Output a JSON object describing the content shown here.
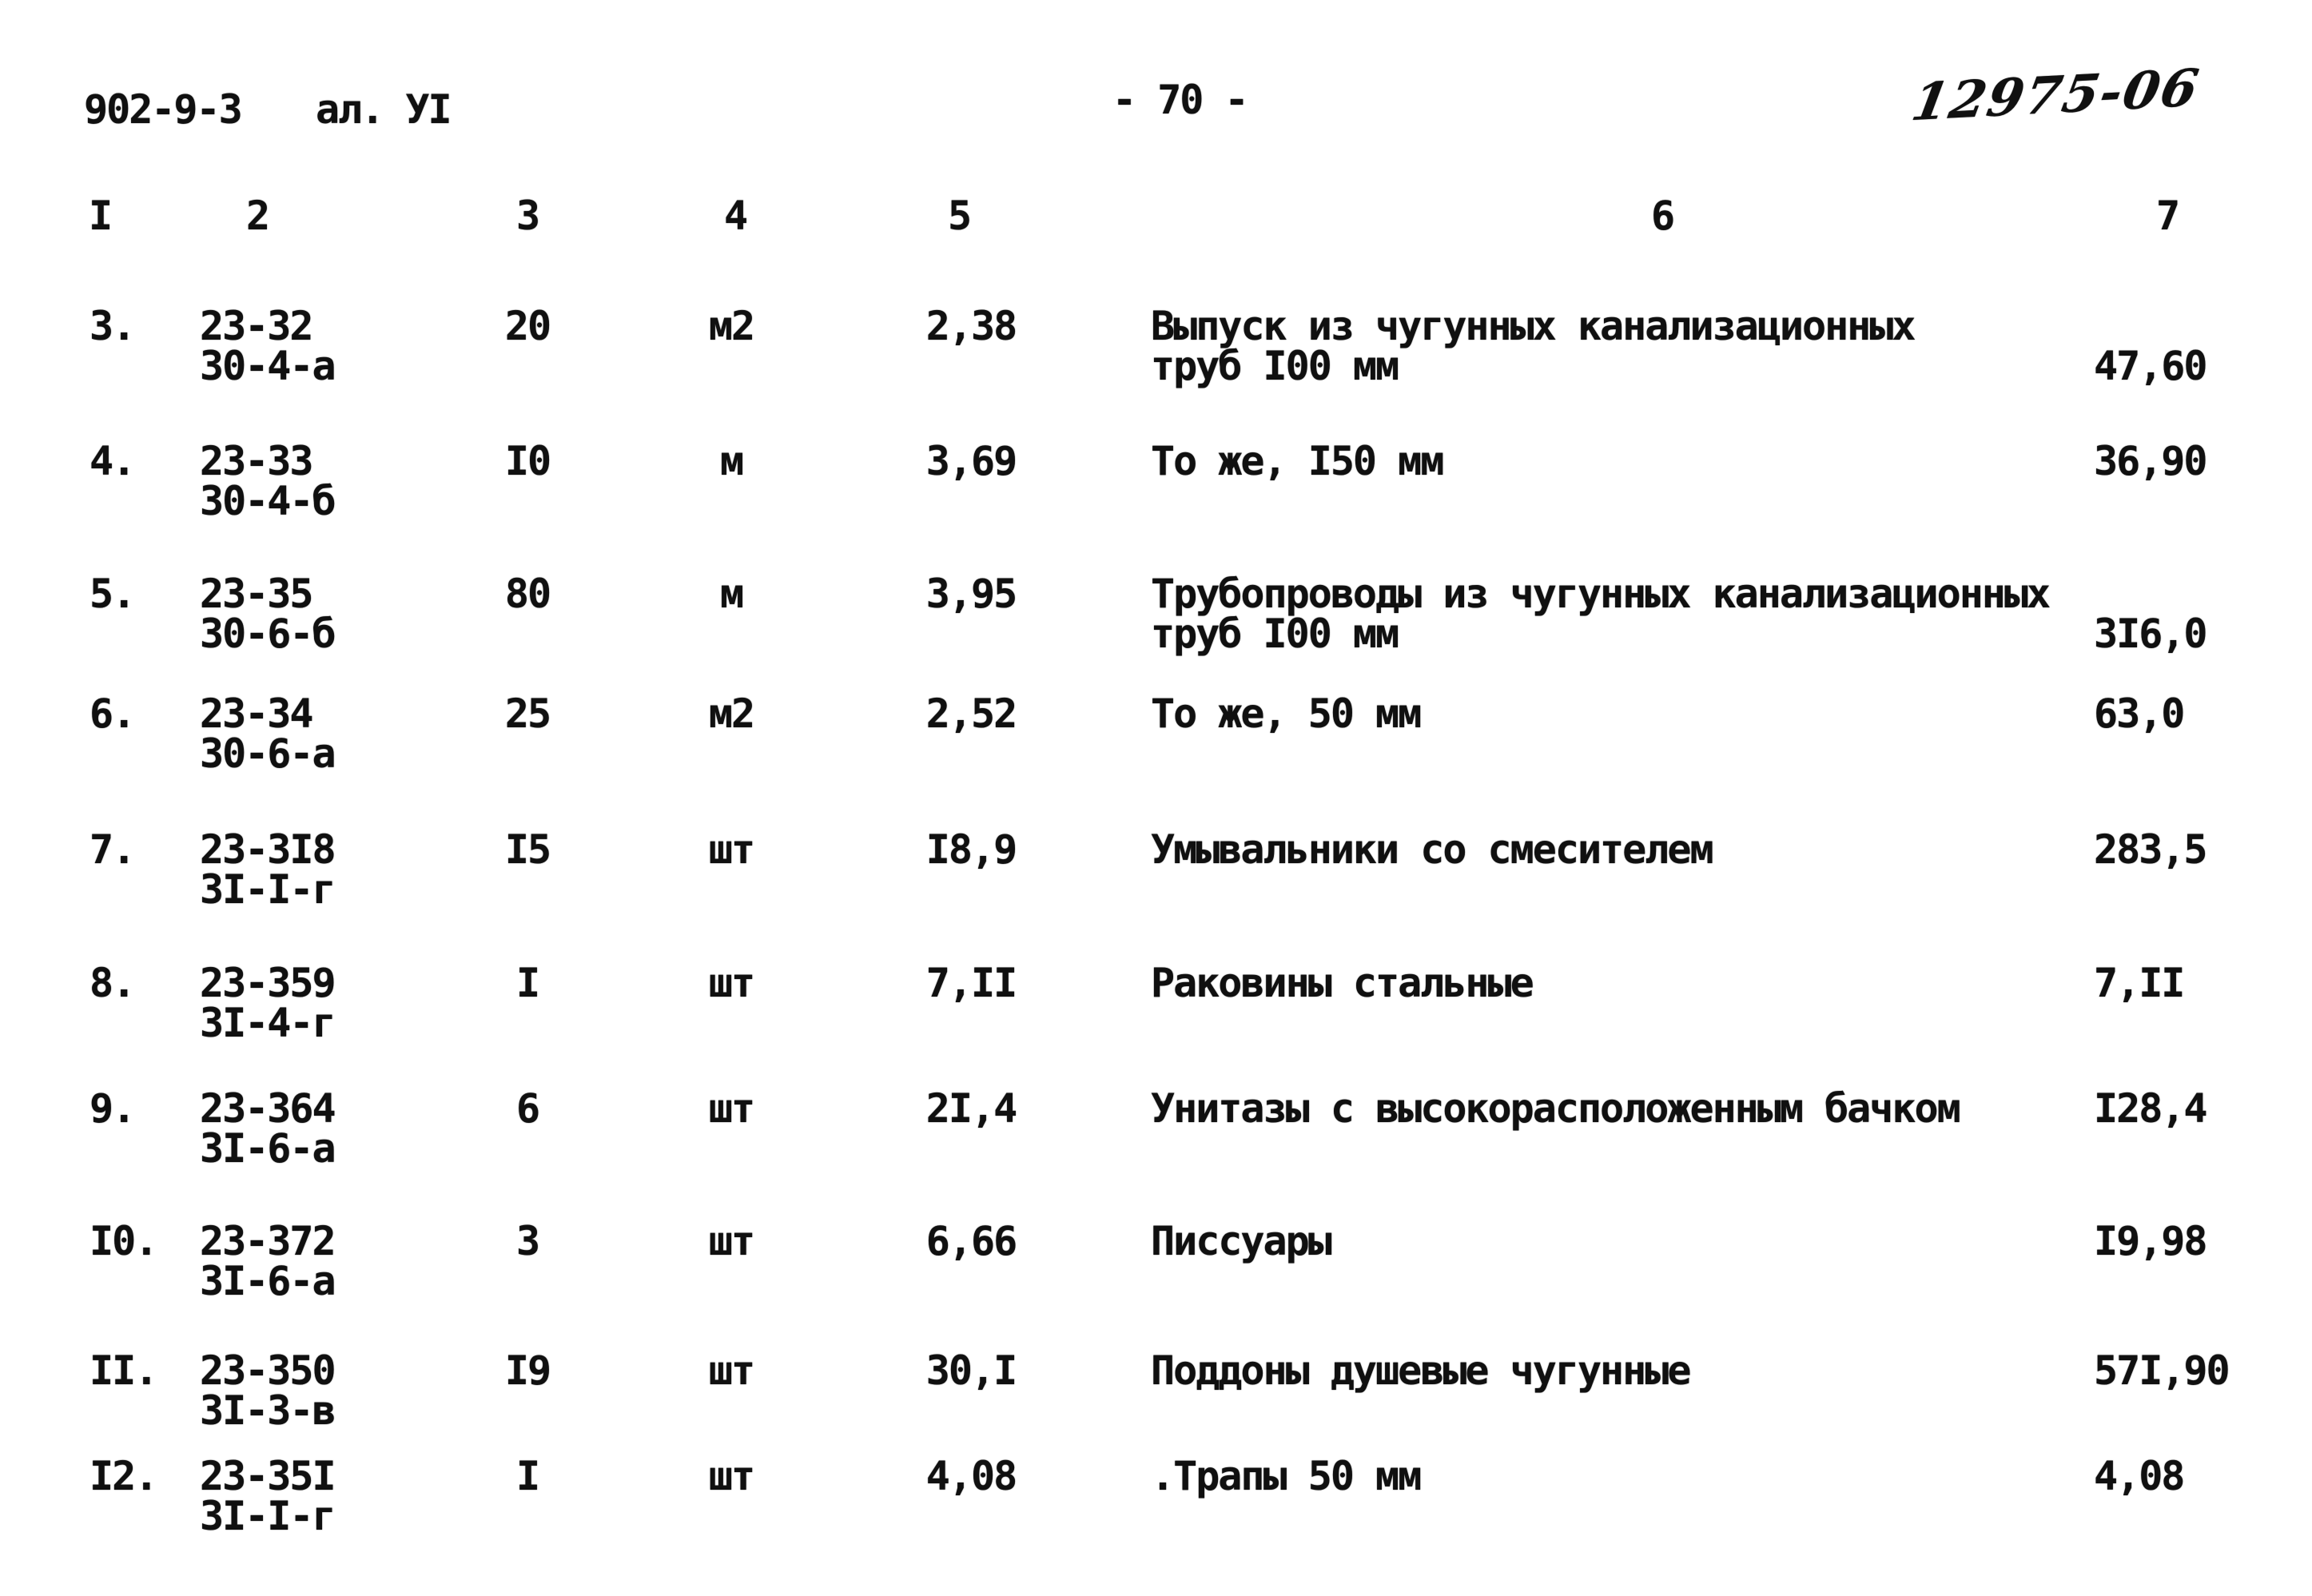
{
  "header": {
    "doc_code": "902-9-3",
    "album": "ал. УІ",
    "page_number": "- 70 -",
    "handwritten_number": "12975-06"
  },
  "table": {
    "column_headers": [
      "I",
      "2",
      "3",
      "4",
      "5",
      "6",
      "7"
    ],
    "rows": [
      {
        "num": "3.",
        "code": [
          "23-32",
          "30-4-а"
        ],
        "qty": "20",
        "unit": "м2",
        "unit_cost": "2,38",
        "description": [
          "Выпуск из чугунных канализационных",
          "труб I00 мм"
        ],
        "total": "47,60"
      },
      {
        "num": "4.",
        "code": [
          "23-33",
          "30-4-б"
        ],
        "qty": "I0",
        "unit": "м",
        "unit_cost": "3,69",
        "description": [
          "То же, I50 мм"
        ],
        "total": "36,90"
      },
      {
        "num": "5.",
        "code": [
          "23-35",
          "30-6-б"
        ],
        "qty": "80",
        "unit": "м",
        "unit_cost": "3,95",
        "description": [
          "Трубопроводы из чугунных канализационных",
          "труб I00 мм"
        ],
        "total": "3I6,0"
      },
      {
        "num": "6.",
        "code": [
          "23-34",
          "30-6-а"
        ],
        "qty": "25",
        "unit": "м2",
        "unit_cost": "2,52",
        "description": [
          "То же, 50 мм"
        ],
        "total": "63,0"
      },
      {
        "num": "7.",
        "code": [
          "23-3I8",
          "3I-I-г"
        ],
        "qty": "I5",
        "unit": "шт",
        "unit_cost": "I8,9",
        "description": [
          "Умывальники со смесителем"
        ],
        "total": "283,5"
      },
      {
        "num": "8.",
        "code": [
          "23-359",
          "3I-4-г"
        ],
        "qty": "I",
        "unit": "шт",
        "unit_cost": "7,II",
        "description": [
          "Раковины стальные"
        ],
        "total": "7,II"
      },
      {
        "num": "9.",
        "code": [
          "23-364",
          "3I-6-а"
        ],
        "qty": "6",
        "unit": "шт",
        "unit_cost": "2I,4",
        "description": [
          "Унитазы с высокорасположенным бачком"
        ],
        "total": "I28,4"
      },
      {
        "num": "I0.",
        "code": [
          "23-372",
          "3I-6-а"
        ],
        "qty": "3",
        "unit": "шт",
        "unit_cost": "6,66",
        "description": [
          "Писсуары"
        ],
        "total": "I9,98"
      },
      {
        "num": "II.",
        "code": [
          "23-350",
          "3I-3-в"
        ],
        "qty": "I9",
        "unit": "шт",
        "unit_cost": "30,I",
        "description": [
          "Поддоны душевые чугунные"
        ],
        "total": "57I,90"
      },
      {
        "num": "I2.",
        "code": [
          "23-35I",
          "3I-I-г"
        ],
        "qty": "I",
        "unit": "шт",
        "unit_cost": "4,08",
        "description": [
          ".Трапы 50 мм"
        ],
        "total": "4,08"
      }
    ]
  }
}
